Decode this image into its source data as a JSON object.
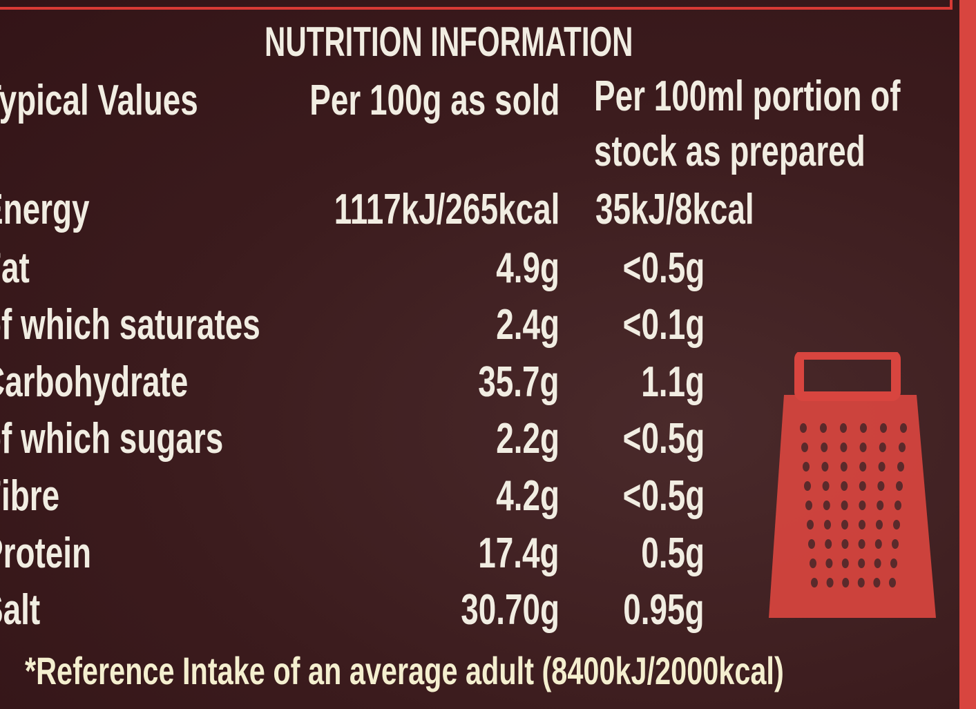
{
  "title": "NUTRITION INFORMATION",
  "header": {
    "col1": "Typical Values",
    "col2": "Per 100g as sold",
    "col3": "Per 100ml portion of stock as prepared"
  },
  "rows": [
    [
      "Energy",
      "1117kJ/265kcal",
      "35kJ/8kcal"
    ],
    [
      "Fat",
      "4.9g",
      "<0.5g"
    ],
    [
      "of which saturates",
      "2.4g",
      "<0.1g"
    ],
    [
      "Carbohydrate",
      "35.7g",
      "1.1g"
    ],
    [
      "of which sugars",
      "2.2g",
      "<0.5g"
    ],
    [
      "Fibre",
      "4.2g",
      "<0.5g"
    ],
    [
      "Protein",
      "17.4g",
      "0.5g"
    ],
    [
      "Salt",
      "30.70g",
      "0.95g"
    ]
  ],
  "footnote": "*Reference Intake of an average adult (8400kJ/2000kcal)"
}
